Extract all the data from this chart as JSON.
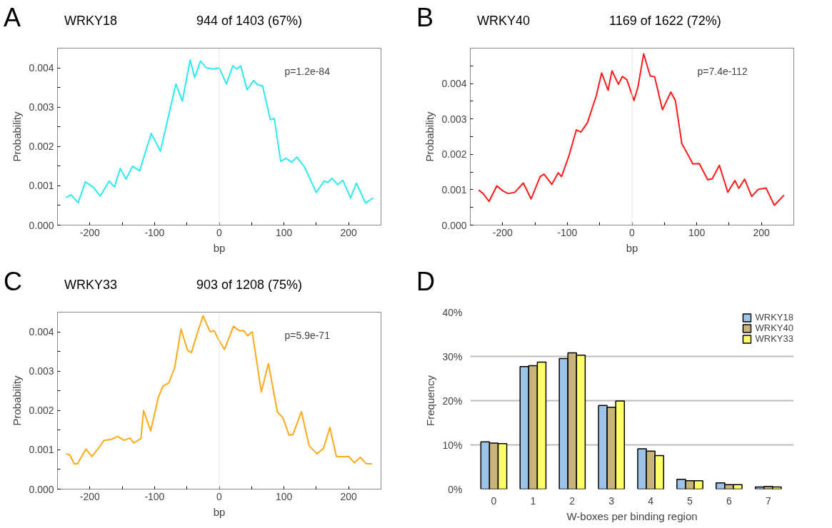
{
  "chart_data": [
    {
      "type": "line",
      "title": "WRKY18",
      "subtitle": "944 of 1403 (67%)",
      "ylabel": "Probability",
      "xlabel": "bp",
      "annotations": [
        "A",
        "p=1.2e-84"
      ],
      "xlim": [
        -250,
        250
      ],
      "ylim": [
        0,
        0.0045
      ],
      "xticks": [
        -200,
        {
          "value": -150,
          "label": null
        },
        -100,
        {
          "value": -50,
          "label": null
        },
        0,
        {
          "value": 50,
          "label": null
        },
        100,
        {
          "value": 150,
          "label": null
        },
        200
      ],
      "yticks": [
        {
          "value": 0,
          "label": "0.000"
        },
        {
          "value": 0.0005,
          "label": null
        },
        0.001,
        {
          "value": 0.0015,
          "label": null
        },
        0.002,
        {
          "value": 0.0025,
          "label": null
        },
        0.003,
        {
          "value": 0.0035,
          "label": null
        },
        0.004
      ],
      "ref_lines": [
        {
          "axis": "x",
          "value": 0,
          "label": null,
          "color": "#e6e6e6"
        }
      ],
      "series": [
        {
          "color": "#2ee8f0",
          "x": [
            -237,
            -229,
            -218,
            -207,
            -195,
            -184,
            -170,
            -162,
            -153,
            -144,
            -134,
            -123,
            -115,
            -105,
            -91,
            -77,
            -67,
            -57,
            -45,
            -38,
            -29,
            -20,
            -9,
            0,
            11,
            21,
            27,
            33,
            43,
            53,
            59,
            67,
            79,
            85,
            95,
            103,
            112,
            120,
            132,
            150,
            162,
            168,
            174,
            183,
            191,
            203,
            212,
            226,
            238
          ],
          "values": [
            0.0007,
            0.00077,
            0.00057,
            0.0011,
            0.00097,
            0.00074,
            0.00112,
            0.00097,
            0.00144,
            0.00117,
            0.0015,
            0.00138,
            0.00181,
            0.00233,
            0.00188,
            0.00287,
            0.00359,
            0.00315,
            0.0042,
            0.00375,
            0.00417,
            0.004,
            0.00397,
            0.004,
            0.00359,
            0.00405,
            0.00397,
            0.00405,
            0.00344,
            0.00368,
            0.00357,
            0.00354,
            0.00268,
            0.00271,
            0.00162,
            0.0017,
            0.0016,
            0.00173,
            0.00147,
            0.00083,
            0.00112,
            0.00109,
            0.00119,
            0.00103,
            0.00114,
            0.00069,
            0.00107,
            0.00056,
            0.00069
          ]
        }
      ]
    },
    {
      "type": "line",
      "title": "WRKY40",
      "subtitle": "1169 of 1622 (72%)",
      "ylabel": "Probability",
      "xlabel": "bp",
      "annotations": [
        "B",
        "p=7.4e-112"
      ],
      "xlim": [
        -250,
        250
      ],
      "ylim": [
        0,
        0.005
      ],
      "xticks": [
        -200,
        {
          "value": -150,
          "label": null
        },
        -100,
        {
          "value": -50,
          "label": null
        },
        0,
        {
          "value": 50,
          "label": null
        },
        100,
        {
          "value": 150,
          "label": null
        },
        200
      ],
      "yticks": [
        {
          "value": 0,
          "label": "0.000"
        },
        {
          "value": 0.0005,
          "label": null
        },
        0.001,
        {
          "value": 0.0015,
          "label": null
        },
        0.002,
        {
          "value": 0.0025,
          "label": null
        },
        0.003,
        {
          "value": 0.0035,
          "label": null
        },
        0.004,
        {
          "value": 0.0045,
          "label": null
        }
      ],
      "ref_lines": [
        {
          "axis": "x",
          "value": 0,
          "label": null,
          "color": "#e6e6e6"
        }
      ],
      "series": [
        {
          "color": "#ff1a1a",
          "x": [
            -237,
            -230,
            -221,
            -209,
            -199,
            -191,
            -181,
            -168,
            -156,
            -142,
            -136,
            -124,
            -114,
            -109,
            -98,
            -86,
            -79,
            -69,
            -55,
            -47,
            -37,
            -31,
            -21,
            -15,
            -8,
            3,
            9,
            18,
            28,
            35,
            47,
            60,
            67,
            77,
            84,
            94,
            104,
            117,
            124,
            135,
            148,
            159,
            165,
            174,
            185,
            195,
            207,
            220,
            235
          ],
          "values": [
            0.00099,
            0.00089,
            0.00067,
            0.00111,
            0.00096,
            0.00089,
            0.00093,
            0.00119,
            0.00074,
            0.00137,
            0.00144,
            0.00115,
            0.00148,
            0.00137,
            0.00193,
            0.00269,
            0.00263,
            0.00289,
            0.00367,
            0.0043,
            0.00381,
            0.00436,
            0.00398,
            0.0042,
            0.00411,
            0.00352,
            0.00389,
            0.00484,
            0.00422,
            0.00419,
            0.00326,
            0.00376,
            0.00352,
            0.0023,
            0.00207,
            0.00173,
            0.00174,
            0.00128,
            0.00131,
            0.00169,
            0.00093,
            0.00126,
            0.00104,
            0.0013,
            0.00081,
            0.00101,
            0.00105,
            0.00056,
            0.00085
          ]
        }
      ]
    },
    {
      "type": "line",
      "title": "WRKY33",
      "subtitle": "903 of 1208 (75%)",
      "ylabel": "Probability",
      "xlabel": "bp",
      "annotations": [
        "C",
        "p=5.9e-71"
      ],
      "xlim": [
        -250,
        250
      ],
      "ylim": [
        0,
        0.0045
      ],
      "xticks": [
        -200,
        {
          "value": -150,
          "label": null
        },
        -100,
        {
          "value": -50,
          "label": null
        },
        0,
        {
          "value": 50,
          "label": null
        },
        100,
        {
          "value": 150,
          "label": null
        },
        200
      ],
      "yticks": [
        {
          "value": 0,
          "label": "0.000"
        },
        {
          "value": 0.0005,
          "label": null
        },
        0.001,
        {
          "value": 0.0015,
          "label": null
        },
        0.002,
        {
          "value": 0.0025,
          "label": null
        },
        0.003,
        {
          "value": 0.0035,
          "label": null
        },
        0.004
      ],
      "ref_lines": [
        {
          "axis": "x",
          "value": 0,
          "label": null,
          "color": "#e6e6e6"
        }
      ],
      "series": [
        {
          "color": "#ffa81a",
          "x": [
            -237,
            -231,
            -224,
            -219,
            -206,
            -197,
            -187,
            -178,
            -168,
            -157,
            -147,
            -138,
            -132,
            -121,
            -117,
            -106,
            -94,
            -87,
            -78,
            -69,
            -59,
            -49,
            -43,
            -35,
            -25,
            -20,
            -14,
            -8,
            -2,
            8,
            22,
            31,
            38,
            44,
            51,
            65,
            76,
            90,
            98,
            108,
            114,
            127,
            139,
            151,
            161,
            171,
            181,
            189,
            200,
            209,
            218,
            227,
            236
          ],
          "values": [
            0.0009,
            0.00087,
            0.00064,
            0.00065,
            0.00102,
            0.00083,
            0.00103,
            0.00124,
            0.00126,
            0.00134,
            0.00124,
            0.0013,
            0.00117,
            0.00129,
            0.002,
            0.00148,
            0.00234,
            0.00262,
            0.0027,
            0.00308,
            0.00407,
            0.00353,
            0.00347,
            0.00391,
            0.00441,
            0.00421,
            0.004,
            0.00403,
            0.00383,
            0.00355,
            0.00414,
            0.00403,
            0.00403,
            0.0039,
            0.004,
            0.00247,
            0.00319,
            0.00195,
            0.00183,
            0.00137,
            0.00139,
            0.00197,
            0.0011,
            0.0009,
            0.00103,
            0.00157,
            0.00083,
            0.00082,
            0.00083,
            0.00067,
            0.00081,
            0.00065,
            0.00064
          ]
        }
      ]
    },
    {
      "type": "bar",
      "xlabel": "W-boxes per binding region",
      "ylabel": "Frequency",
      "annotations": [
        "D"
      ],
      "categories": [
        "0",
        "1",
        "2",
        "3",
        "4",
        "5",
        "6",
        "7"
      ],
      "ylim": [
        0,
        40
      ],
      "yticks": [
        {
          "value": 0,
          "label": "0%"
        },
        {
          "value": 10,
          "label": "10%"
        },
        {
          "value": 20,
          "label": "20%"
        },
        {
          "value": 30,
          "label": "30%"
        },
        {
          "value": 40,
          "label": "40%"
        }
      ],
      "grid": "y",
      "legend": "top right",
      "series": [
        {
          "name": "WRKY18",
          "color": "#9dc3e6",
          "values": [
            10.7,
            27.7,
            29.5,
            18.9,
            9.1,
            2.2,
            1.4,
            0.5
          ]
        },
        {
          "name": "WRKY40",
          "color": "#c8b47a",
          "values": [
            10.4,
            27.9,
            30.8,
            18.5,
            8.6,
            1.9,
            1.0,
            0.6
          ]
        },
        {
          "name": "WRKY33",
          "color": "#ffff66",
          "values": [
            10.3,
            28.7,
            30.3,
            19.9,
            7.6,
            1.9,
            1.0,
            0.5
          ]
        }
      ]
    }
  ]
}
